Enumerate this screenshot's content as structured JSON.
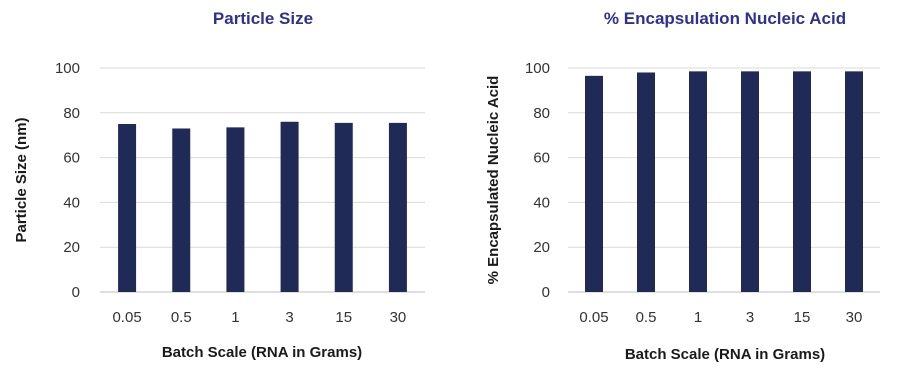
{
  "colors": {
    "bar": "#1F2A57",
    "title": "#2E3192",
    "gridline": "#D9D9D9",
    "axis": "#BFBFBF"
  },
  "chart_data": [
    {
      "type": "bar",
      "title": "Particle Size",
      "xlabel": "Batch Scale (RNA in Grams)",
      "ylabel": "Particle Size (nm)",
      "categories": [
        "0.05",
        "0.5",
        "1",
        "3",
        "15",
        "30"
      ],
      "values": [
        75,
        73,
        73.5,
        76,
        75.5,
        75.5
      ],
      "ylim": [
        0,
        100
      ],
      "yticks": [
        "0",
        "20",
        "40",
        "60",
        "80",
        "100"
      ],
      "grid": true,
      "legend": "none"
    },
    {
      "type": "bar",
      "title": "% Encapsulation Nucleic Acid",
      "xlabel": "Batch Scale (RNA in Grams)",
      "ylabel": "% Encapsulated Nucleic Acid",
      "categories": [
        "0.05",
        "0.5",
        "1",
        "3",
        "15",
        "30"
      ],
      "values": [
        96.5,
        98,
        98.5,
        98.5,
        98.5,
        98.5
      ],
      "ylim": [
        0,
        100
      ],
      "yticks": [
        "0",
        "20",
        "40",
        "60",
        "80",
        "100"
      ],
      "grid": true,
      "legend": "none"
    }
  ]
}
